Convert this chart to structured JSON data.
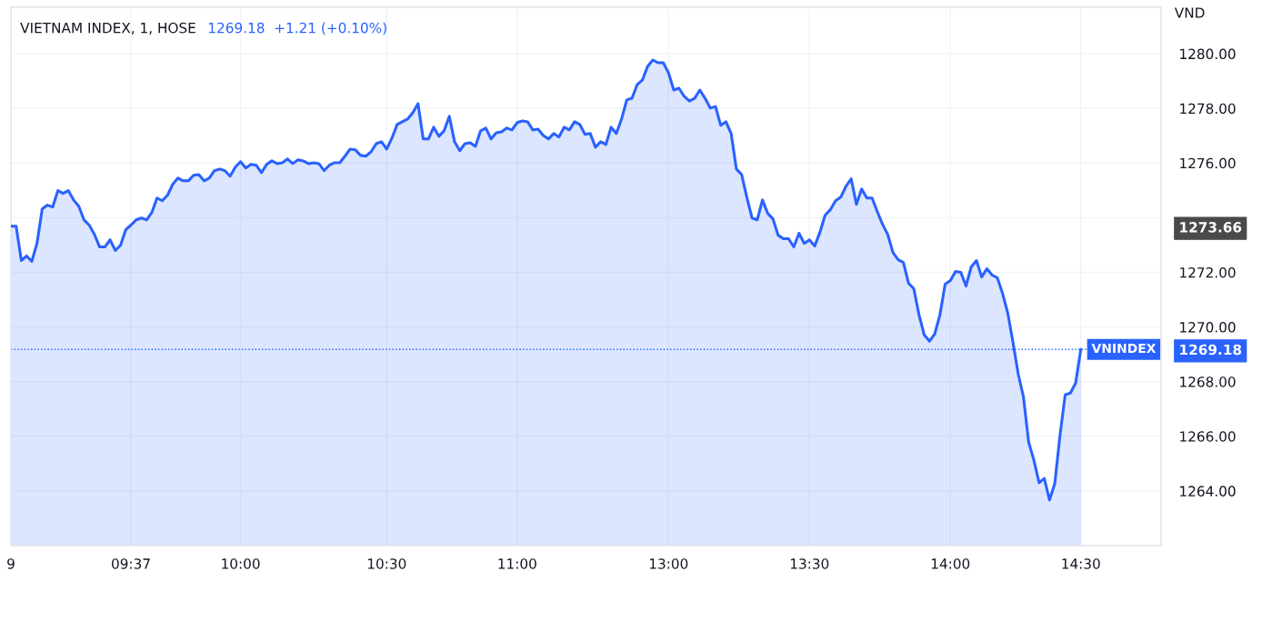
{
  "chart_data": {
    "type": "area",
    "title": "VIETNAM INDEX, 1, HOSE",
    "subtitle": "1269.18  +1.21 (+0.10%)",
    "ylabel": "VND",
    "ylim": [
      1262,
      1281.7
    ],
    "categories": [
      "9",
      null,
      null,
      null,
      null,
      null,
      null,
      null,
      null,
      null,
      null,
      null,
      null,
      null,
      null,
      null,
      null,
      null,
      null,
      null,
      null,
      null,
      null,
      "09:37",
      null,
      null,
      null,
      null,
      null,
      null,
      null,
      null,
      null,
      null,
      null,
      null,
      null,
      null,
      null,
      null,
      null,
      null,
      null,
      null,
      "10:00",
      null,
      null,
      null,
      null,
      null,
      null,
      null,
      null,
      null,
      null,
      null,
      null,
      null,
      null,
      null,
      null,
      null,
      null,
      null,
      null,
      null,
      null,
      null,
      null,
      null,
      null,
      null,
      "10:30",
      null,
      null,
      null,
      null,
      null,
      null,
      null,
      null,
      null,
      null,
      null,
      null,
      null,
      null,
      null,
      null,
      null,
      null,
      null,
      null,
      null,
      null,
      null,
      null,
      "11:00",
      null,
      null,
      null,
      null,
      null,
      null,
      null,
      null,
      null,
      null,
      null,
      null,
      null,
      null,
      null,
      null,
      null,
      null,
      null,
      null,
      null,
      null,
      null,
      null,
      null,
      null,
      null,
      null,
      "13:00",
      null,
      null,
      null,
      null,
      null,
      null,
      null,
      null,
      null,
      null,
      null,
      null,
      null,
      null,
      null,
      null,
      null,
      null,
      null,
      null,
      null,
      null,
      null,
      null,
      null,
      null,
      "13:30",
      null,
      null,
      null,
      null,
      null,
      null,
      null,
      null,
      null,
      null,
      null,
      null,
      null,
      null,
      null,
      null,
      null,
      null,
      null,
      null,
      null,
      null,
      null,
      null,
      null,
      null,
      "14:00",
      null,
      null,
      null,
      null,
      null,
      null,
      null,
      null,
      null,
      null,
      null,
      null,
      null,
      null,
      null,
      null,
      null,
      null,
      null,
      null,
      null,
      null,
      null,
      null,
      "14:30"
    ],
    "yticks": [
      {
        "value": 1264,
        "label": "1264.00"
      },
      {
        "value": 1266,
        "label": "1266.00"
      },
      {
        "value": 1268,
        "label": "1268.00"
      },
      {
        "value": 1269.18,
        "label": "1269.18"
      },
      {
        "value": 1270,
        "label": "1270.00"
      },
      {
        "value": 1272,
        "label": "1272.00"
      },
      {
        "value": 1273.66,
        "label": "1273.66"
      },
      {
        "value": 1274,
        "label": null
      },
      {
        "value": 1276,
        "label": "1276.00"
      },
      {
        "value": 1278,
        "label": "1278.00"
      },
      {
        "value": 1280,
        "label": "1280.00"
      }
    ],
    "grid": true,
    "ref_lines": [
      {
        "axis": "y",
        "value": 1269.18,
        "label": "VNINDEX",
        "color": "#2962ff",
        "line_style": "dotted"
      }
    ],
    "series": [
      {
        "color": "#2962ff",
        "values": [
          1273.69,
          1273.69,
          1272.43,
          1272.6,
          1272.4,
          1273.06,
          1274.32,
          1274.46,
          1274.39,
          1274.99,
          1274.89,
          1274.99,
          1274.65,
          1274.42,
          1273.92,
          1273.73,
          1273.39,
          1272.93,
          1272.93,
          1273.19,
          1272.8,
          1272.99,
          1273.56,
          1273.73,
          1273.92,
          1273.99,
          1273.92,
          1274.19,
          1274.72,
          1274.62,
          1274.82,
          1275.22,
          1275.45,
          1275.35,
          1275.35,
          1275.55,
          1275.58,
          1275.35,
          1275.45,
          1275.72,
          1275.78,
          1275.72,
          1275.52,
          1275.85,
          1276.05,
          1275.82,
          1275.95,
          1275.92,
          1275.65,
          1275.95,
          1276.08,
          1275.98,
          1276.01,
          1276.15,
          1275.98,
          1276.12,
          1276.08,
          1275.98,
          1276.01,
          1275.98,
          1275.72,
          1275.92,
          1276.01,
          1276.01,
          1276.25,
          1276.51,
          1276.48,
          1276.28,
          1276.25,
          1276.41,
          1276.71,
          1276.78,
          1276.51,
          1276.91,
          1277.41,
          1277.51,
          1277.61,
          1277.84,
          1278.17,
          1276.88,
          1276.88,
          1277.31,
          1276.98,
          1277.18,
          1277.71,
          1276.78,
          1276.45,
          1276.71,
          1276.74,
          1276.61,
          1277.18,
          1277.28,
          1276.88,
          1277.11,
          1277.14,
          1277.28,
          1277.21,
          1277.48,
          1277.54,
          1277.51,
          1277.21,
          1277.24,
          1277.01,
          1276.88,
          1277.08,
          1276.95,
          1277.31,
          1277.21,
          1277.51,
          1277.41,
          1277.05,
          1277.08,
          1276.58,
          1276.78,
          1276.68,
          1277.31,
          1277.08,
          1277.61,
          1278.31,
          1278.37,
          1278.87,
          1279.04,
          1279.54,
          1279.77,
          1279.67,
          1279.67,
          1279.3,
          1278.67,
          1278.74,
          1278.44,
          1278.27,
          1278.37,
          1278.67,
          1278.37,
          1278.01,
          1278.07,
          1277.38,
          1277.51,
          1277.08,
          1275.78,
          1275.58,
          1274.75,
          1273.99,
          1273.92,
          1274.65,
          1274.16,
          1273.96,
          1273.36,
          1273.23,
          1273.23,
          1272.93,
          1273.43,
          1273.06,
          1273.19,
          1272.96,
          1273.46,
          1274.09,
          1274.29,
          1274.62,
          1274.75,
          1275.15,
          1275.42,
          1274.49,
          1275.05,
          1274.72,
          1274.72,
          1274.22,
          1273.76,
          1273.39,
          1272.73,
          1272.46,
          1272.36,
          1271.6,
          1271.4,
          1270.44,
          1269.71,
          1269.48,
          1269.74,
          1270.44,
          1271.57,
          1271.7,
          1272.03,
          1272.0,
          1271.5,
          1272.2,
          1272.43,
          1271.83,
          1272.13,
          1271.9,
          1271.8,
          1271.23,
          1270.51,
          1269.44,
          1268.28,
          1267.45,
          1265.79,
          1265.13,
          1264.3,
          1264.46,
          1263.67,
          1264.26,
          1266.02,
          1267.52,
          1267.58,
          1267.95,
          1269.18
        ]
      }
    ]
  }
}
